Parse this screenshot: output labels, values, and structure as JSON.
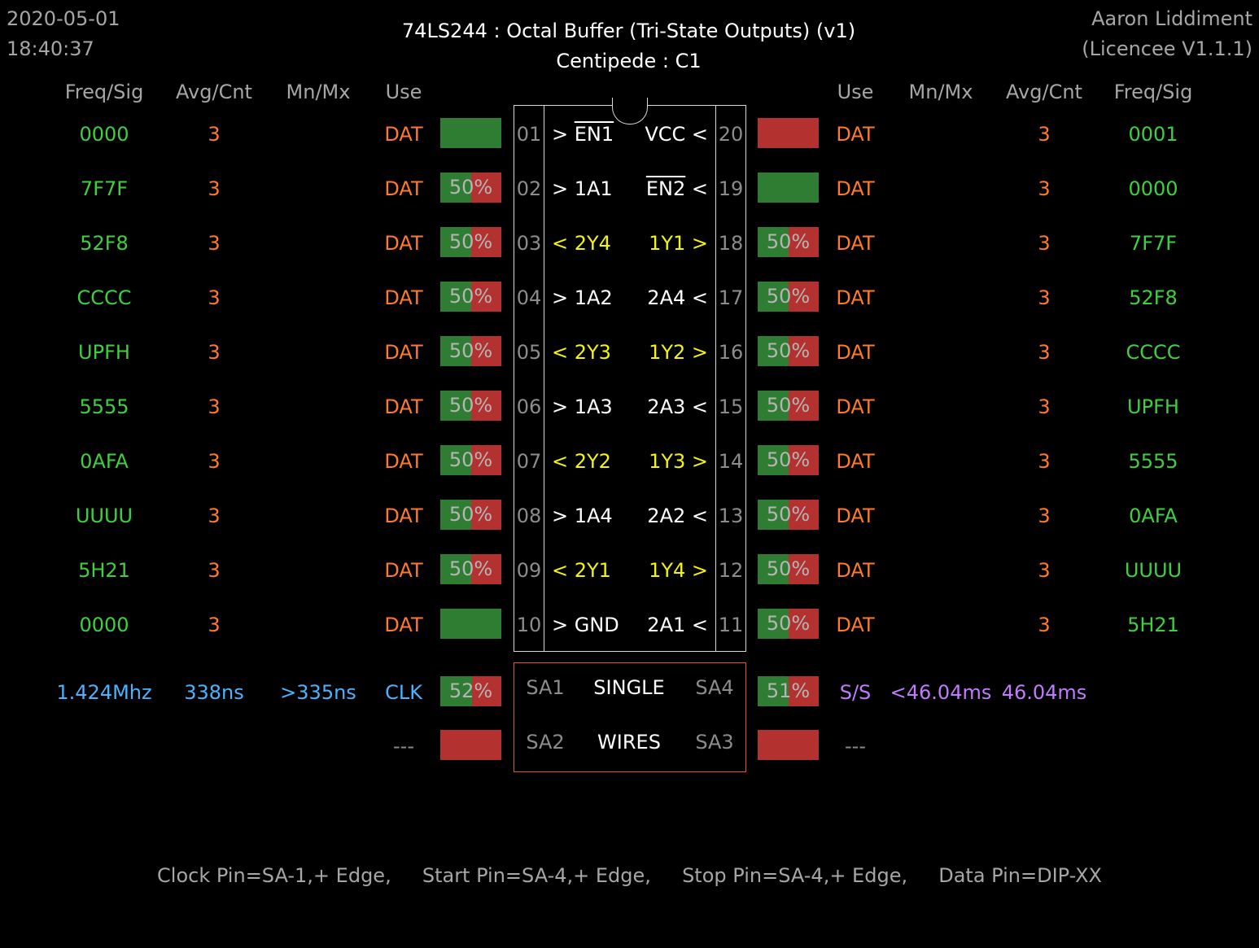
{
  "top": {
    "date": "2020-05-01",
    "time": "18:40:37",
    "title": "74LS244  :  Octal Buffer (Tri-State Outputs) (v1)",
    "subtitle": "Centipede : C1",
    "author": "Aaron Liddiment",
    "licence": "(Licencee V1.1.1)"
  },
  "headers": {
    "left": [
      "Freq/Sig",
      "Avg/Cnt",
      "Mn/Mx",
      "Use"
    ],
    "right": [
      "Use",
      "Mn/Mx",
      "Avg/Cnt",
      "Freq/Sig"
    ]
  },
  "left_pins": [
    {
      "num": "01",
      "sig": "0000",
      "cnt": "3",
      "use": "DAT",
      "bar": "",
      "high_pct": 100,
      "pin_text": "> EN1",
      "pin_overline": "EN1",
      "pin_color": "white"
    },
    {
      "num": "02",
      "sig": "7F7F",
      "cnt": "3",
      "use": "DAT",
      "bar": "50%",
      "high_pct": 50,
      "pin_text": "> 1A1",
      "pin_color": "white"
    },
    {
      "num": "03",
      "sig": "52F8",
      "cnt": "3",
      "use": "DAT",
      "bar": "50%",
      "high_pct": 50,
      "pin_text": "< 2Y4",
      "pin_color": "yellow"
    },
    {
      "num": "04",
      "sig": "CCCC",
      "cnt": "3",
      "use": "DAT",
      "bar": "50%",
      "high_pct": 50,
      "pin_text": "> 1A2",
      "pin_color": "white"
    },
    {
      "num": "05",
      "sig": "UPFH",
      "cnt": "3",
      "use": "DAT",
      "bar": "50%",
      "high_pct": 50,
      "pin_text": "< 2Y3",
      "pin_color": "yellow"
    },
    {
      "num": "06",
      "sig": "5555",
      "cnt": "3",
      "use": "DAT",
      "bar": "50%",
      "high_pct": 50,
      "pin_text": "> 1A3",
      "pin_color": "white"
    },
    {
      "num": "07",
      "sig": "0AFA",
      "cnt": "3",
      "use": "DAT",
      "bar": "50%",
      "high_pct": 50,
      "pin_text": "< 2Y2",
      "pin_color": "yellow"
    },
    {
      "num": "08",
      "sig": "UUUU",
      "cnt": "3",
      "use": "DAT",
      "bar": "50%",
      "high_pct": 50,
      "pin_text": "> 1A4",
      "pin_color": "white"
    },
    {
      "num": "09",
      "sig": "5H21",
      "cnt": "3",
      "use": "DAT",
      "bar": "50%",
      "high_pct": 50,
      "pin_text": "< 2Y1",
      "pin_color": "yellow"
    },
    {
      "num": "10",
      "sig": "0000",
      "cnt": "3",
      "use": "DAT",
      "bar": "",
      "high_pct": 100,
      "pin_text": "> GND",
      "pin_color": "white"
    }
  ],
  "right_pins": [
    {
      "num": "20",
      "sig": "0001",
      "cnt": "3",
      "use": "DAT",
      "bar": "",
      "high_pct": 0,
      "pin_text": "VCC <",
      "pin_color": "white"
    },
    {
      "num": "19",
      "sig": "0000",
      "cnt": "3",
      "use": "DAT",
      "bar": "",
      "high_pct": 100,
      "pin_text": "EN2 <",
      "pin_overline": "EN2",
      "pin_color": "white"
    },
    {
      "num": "18",
      "sig": "7F7F",
      "cnt": "3",
      "use": "DAT",
      "bar": "50%",
      "high_pct": 50,
      "pin_text": "1Y1 >",
      "pin_color": "yellow"
    },
    {
      "num": "17",
      "sig": "52F8",
      "cnt": "3",
      "use": "DAT",
      "bar": "50%",
      "high_pct": 50,
      "pin_text": "2A4 <",
      "pin_color": "white"
    },
    {
      "num": "16",
      "sig": "CCCC",
      "cnt": "3",
      "use": "DAT",
      "bar": "50%",
      "high_pct": 50,
      "pin_text": "1Y2 >",
      "pin_color": "yellow"
    },
    {
      "num": "15",
      "sig": "UPFH",
      "cnt": "3",
      "use": "DAT",
      "bar": "50%",
      "high_pct": 50,
      "pin_text": "2A3 <",
      "pin_color": "white"
    },
    {
      "num": "14",
      "sig": "5555",
      "cnt": "3",
      "use": "DAT",
      "bar": "50%",
      "high_pct": 50,
      "pin_text": "1Y3 >",
      "pin_color": "yellow"
    },
    {
      "num": "13",
      "sig": "0AFA",
      "cnt": "3",
      "use": "DAT",
      "bar": "50%",
      "high_pct": 50,
      "pin_text": "2A2 <",
      "pin_color": "white"
    },
    {
      "num": "12",
      "sig": "UUUU",
      "cnt": "3",
      "use": "DAT",
      "bar": "50%",
      "high_pct": 50,
      "pin_text": "1Y4 >",
      "pin_color": "yellow"
    },
    {
      "num": "11",
      "sig": "5H21",
      "cnt": "3",
      "use": "DAT",
      "bar": "50%",
      "high_pct": 50,
      "pin_text": "2A1 <",
      "pin_color": "white"
    }
  ],
  "clock_row": {
    "freq": "1.424Mhz",
    "avg": "338ns",
    "mnmx": ">335ns",
    "use": "CLK",
    "bar": "52%",
    "high_pct": 52,
    "sa_left": "SA1",
    "center": "SINGLE",
    "sa_right": "SA4",
    "r_bar": "51%",
    "r_high_pct": 51,
    "r_use": "S/S",
    "r_mnmx": "<46.04ms",
    "r_avg": "46.04ms"
  },
  "aux_row": {
    "l_use": "---",
    "l_high_pct": 0,
    "sa_left": "SA2",
    "center": "WIRES",
    "sa_right": "SA3",
    "r_high_pct": 0,
    "r_use": "---"
  },
  "footer": "Clock Pin=SA-1,+ Edge,     Start Pin=SA-4,+ Edge,     Stop Pin=SA-4,+ Edge,     Data Pin=DIP-XX",
  "colors": {
    "green_bar": "#2e7d32",
    "red_bar": "#b3312f",
    "signal": "#3fd03f",
    "count": "#ff7a2a",
    "output_pin": "#f4f40f",
    "clock": "#49b3ff",
    "startstop": "#c07bff"
  }
}
